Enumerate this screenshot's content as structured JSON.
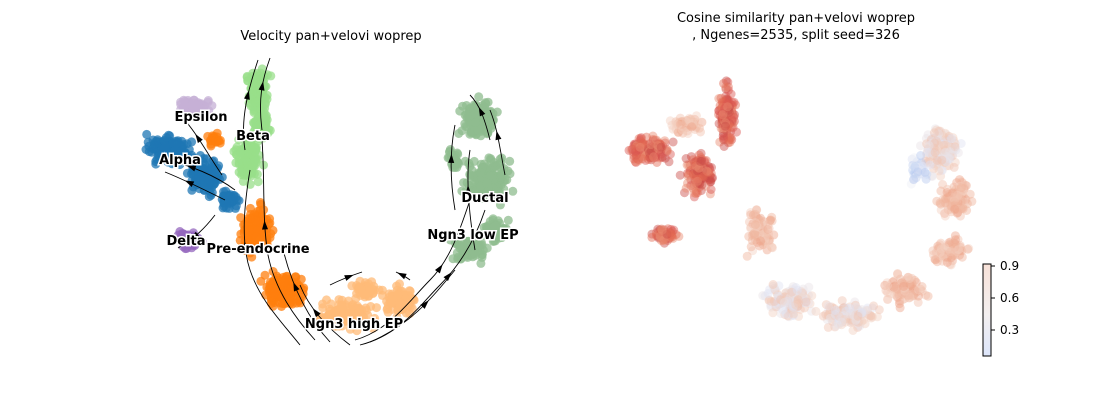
{
  "chart_data": [
    {
      "type": "scatter",
      "title": "Velocity pan+velovi woprep",
      "xlabel": "",
      "ylabel": "",
      "grid": false,
      "streamlines": true,
      "cluster_labels": [
        "Epsilon",
        "Beta",
        "Alpha",
        "Ductal",
        "Delta",
        "Pre-endocrine",
        "Ngn3 low EP",
        "Ngn3 high EP"
      ],
      "cluster_colors": {
        "Alpha": "#1f77b4",
        "Beta": "#98df8a",
        "Delta": "#9467bd",
        "Epsilon": "#c5b0d5",
        "Pre-endocrine": "#ff7f0e",
        "Ngn3 high EP": "#ffbb78",
        "Ngn3 low EP": "#8fbc8f",
        "Ductal": "#8fbc8f"
      }
    },
    {
      "type": "scatter",
      "title_line1": "Cosine similarity pan+velovi woprep",
      "title_line2": ", Ngenes=2535, split seed=326",
      "xlabel": "",
      "ylabel": "",
      "grid": false,
      "colorbar": {
        "colormap": "coolwarm",
        "ticks": [
          "0.3",
          "0.6",
          "0.9"
        ],
        "range": [
          0.05,
          0.92
        ]
      }
    }
  ]
}
